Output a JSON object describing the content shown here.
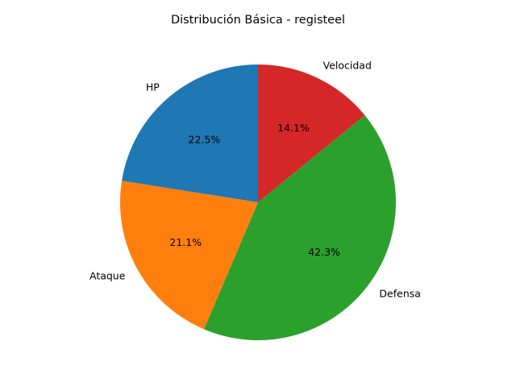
{
  "chart_data": {
    "type": "pie",
    "title": "Distribución Básica - registeel",
    "labels": [
      "HP",
      "Ataque",
      "Defensa",
      "Velocidad"
    ],
    "values": [
      22.5,
      21.1,
      42.3,
      14.1
    ],
    "value_labels": [
      "22.5%",
      "21.1%",
      "42.3%",
      "14.1%"
    ],
    "colors": [
      "#1f77b4",
      "#ff7f0e",
      "#2ca02c",
      "#d62728"
    ],
    "start_angle_deg": 90,
    "direction": "counterclockwise",
    "legend": "none"
  }
}
